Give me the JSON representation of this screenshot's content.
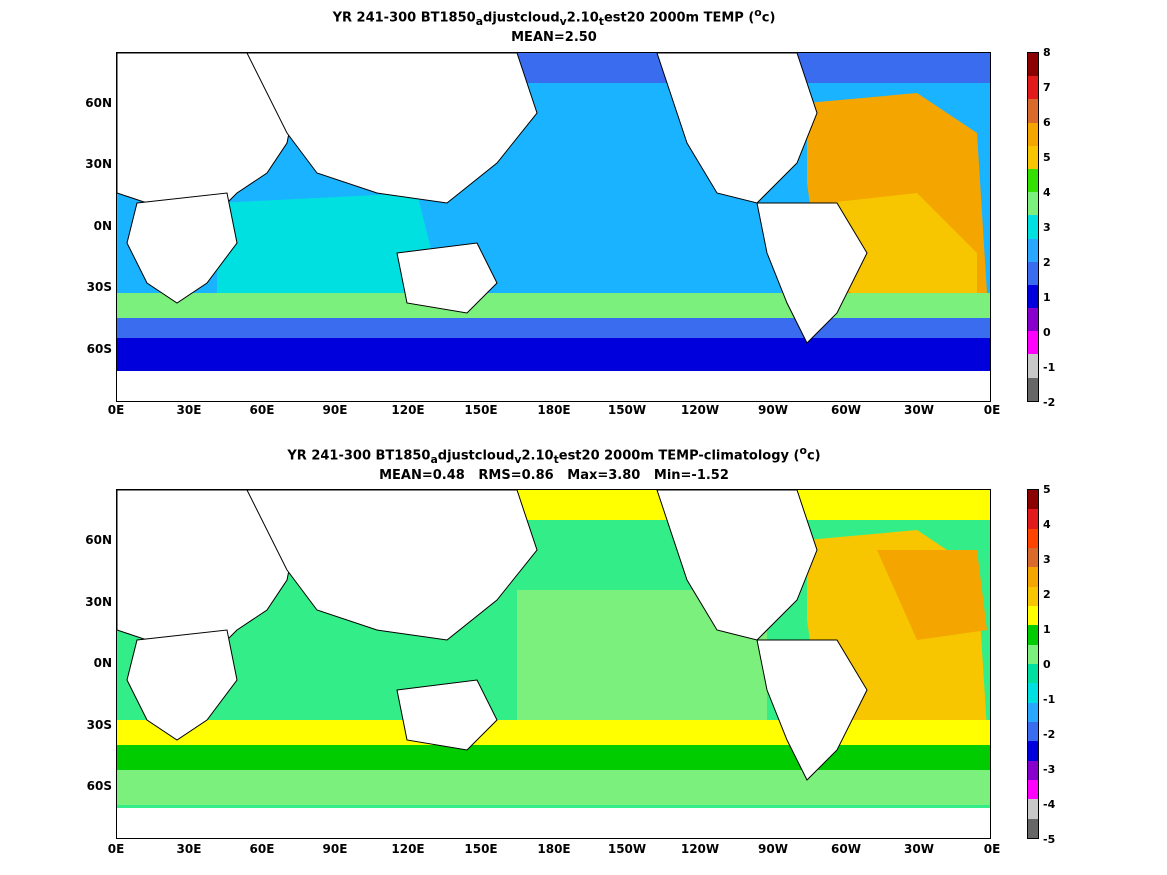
{
  "maps": [
    {
      "title_parts": [
        "YR 241-300 BT1850",
        "a",
        "djustcloud",
        "v",
        "2.10",
        "t",
        "est20 2000m TEMP (",
        "o",
        "c)"
      ],
      "subtitle": "MEAN=2.50",
      "colorbar_labels": [
        "8",
        "7",
        "6",
        "5",
        "4",
        "3",
        "2",
        "1",
        "0",
        "-1",
        "-2"
      ],
      "colorbar_colors": [
        "#8b0000",
        "#e31a1c",
        "#d96a2b",
        "#f5a500",
        "#f7c600",
        "#33e000",
        "#7cf07c",
        "#00e0e0",
        "#2aa8ff",
        "#3a6cf0",
        "#0000dd",
        "#8800cc",
        "#ff00ff",
        "#c8c8c8",
        "#666666"
      ],
      "ocean_color": "#19b3ff"
    },
    {
      "title_parts": [
        "YR 241-300 BT1850",
        "a",
        "djustcloud",
        "v",
        "2.10",
        "t",
        "est20 2000m TEMP-climatology (",
        "o",
        "c)"
      ],
      "subtitle": "MEAN=0.48   RMS=0.86   Max=3.80   Min=-1.52",
      "colorbar_labels": [
        "5",
        "4",
        "3",
        "2",
        "1",
        "0",
        "-1",
        "-2",
        "-3",
        "-4",
        "-5"
      ],
      "colorbar_colors": [
        "#8b0000",
        "#e31a1c",
        "#ff4400",
        "#d96a2b",
        "#f5a500",
        "#f7c600",
        "#ffff00",
        "#00cc00",
        "#7cf07c",
        "#00e0a0",
        "#00e0e0",
        "#2aa8ff",
        "#3a6cf0",
        "#0000dd",
        "#8800cc",
        "#ff00ff",
        "#c8c8c8",
        "#666666"
      ],
      "ocean_color": "#33ee88"
    }
  ],
  "y_axis_labels": [
    "60N",
    "30N",
    "0N",
    "30S",
    "60S"
  ],
  "x_axis_labels": [
    "0E",
    "30E",
    "60E",
    "90E",
    "120E",
    "150E",
    "180E",
    "150W",
    "120W",
    "90W",
    "60W",
    "30W",
    "0E"
  ]
}
